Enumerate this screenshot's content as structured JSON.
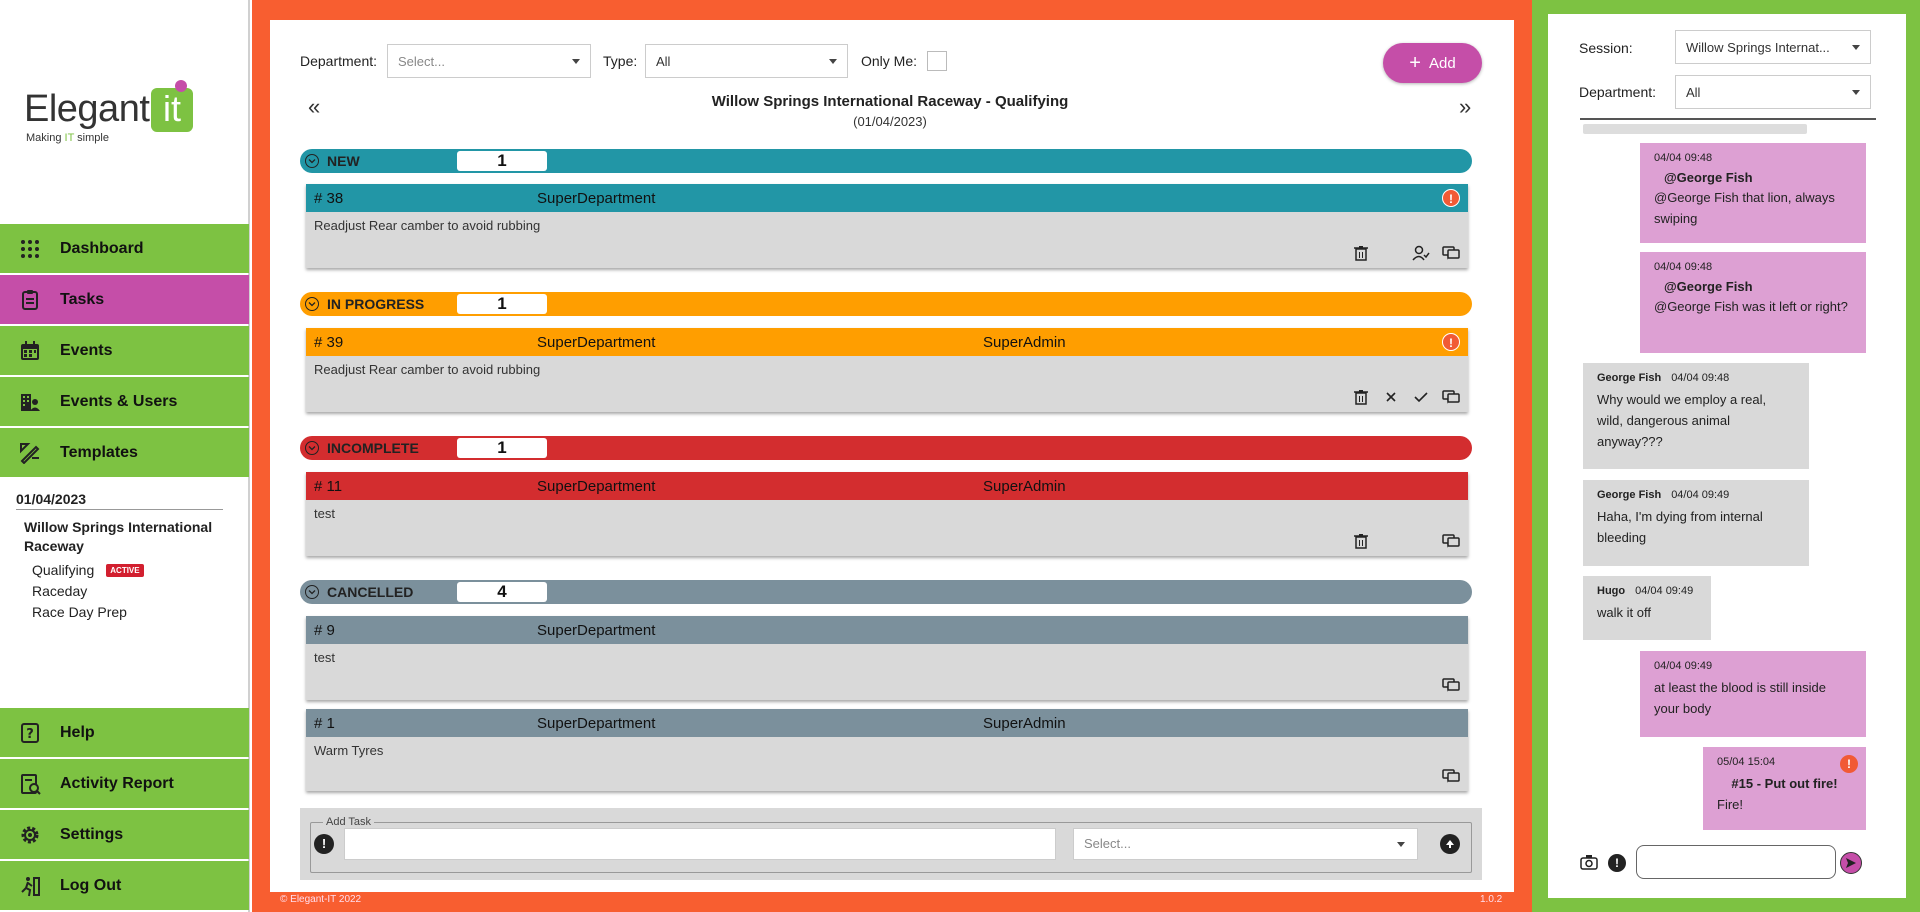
{
  "brand": {
    "name": "Elegant",
    "name_box": "it",
    "tagline_pre": "Making ",
    "tagline_it": "IT",
    "tagline_post": " simple"
  },
  "sidebar": {
    "nav": [
      {
        "label": "Dashboard",
        "icon": "grid-icon"
      },
      {
        "label": "Tasks",
        "icon": "clipboard-icon",
        "active": true
      },
      {
        "label": "Events",
        "icon": "calendar-icon"
      },
      {
        "label": "Events & Users",
        "icon": "building-users-icon"
      },
      {
        "label": "Templates",
        "icon": "ruler-pencil-icon"
      }
    ],
    "bottom_nav": [
      {
        "label": "Help",
        "icon": "question-icon"
      },
      {
        "label": "Activity Report",
        "icon": "report-icon"
      },
      {
        "label": "Settings",
        "icon": "gear-icon"
      },
      {
        "label": "Log Out",
        "icon": "logout-icon"
      }
    ],
    "date": "01/04/2023",
    "venue": "Willow Springs International Raceway",
    "sessions": [
      {
        "label": "Qualifying",
        "badge": "ACTIVE"
      },
      {
        "label": "Raceday"
      },
      {
        "label": "Race Day Prep"
      }
    ]
  },
  "filters": {
    "department_label": "Department:",
    "department_placeholder": "Select...",
    "type_label": "Type:",
    "type_value": "All",
    "only_me_label": "Only Me:",
    "add_label": "Add"
  },
  "session": {
    "title": "Willow Springs International Raceway - Qualifying",
    "date": "(01/04/2023)",
    "prev": "«",
    "next": "»"
  },
  "groups": [
    {
      "name": "NEW",
      "count": "1",
      "color": "#2296a6"
    },
    {
      "name": "IN PROGRESS",
      "count": "1",
      "color": "#ff9e00"
    },
    {
      "name": "INCOMPLETE",
      "count": "1",
      "color": "#d32d2f"
    },
    {
      "name": "CANCELLED",
      "count": "4",
      "color": "#7b909c"
    }
  ],
  "tasks": [
    {
      "num": "# 38",
      "dept": "SuperDepartment",
      "user": "",
      "desc": "Readjust Rear camber to avoid rubbing",
      "alert": "!",
      "color": "#2296a6"
    },
    {
      "num": "# 39",
      "dept": "SuperDepartment",
      "user": "SuperAdmin",
      "desc": "Readjust Rear camber to avoid rubbing",
      "alert": "!",
      "color": "#ff9e00"
    },
    {
      "num": "# 11",
      "dept": "SuperDepartment",
      "user": "SuperAdmin",
      "desc": "test",
      "color": "#d32d2f"
    },
    {
      "num": "# 9",
      "dept": "SuperDepartment",
      "user": "",
      "desc": "test",
      "color": "#7b909c"
    },
    {
      "num": "# 1",
      "dept": "SuperDepartment",
      "user": "SuperAdmin",
      "desc": "Warm Tyres",
      "color": "#7b909c"
    }
  ],
  "add_task": {
    "legend": "Add Task",
    "select_placeholder": "Select..."
  },
  "footer": {
    "copyright": "© Elegant-IT 2022",
    "version": "1.0.2"
  },
  "chat": {
    "session_label": "Session:",
    "session_value": "Willow Springs Internat...",
    "department_label": "Department:",
    "department_value": "All",
    "messages": [
      {
        "time": "04/04 09:48",
        "mention": "@George Fish",
        "text": "@George Fish that lion, always swiping"
      },
      {
        "time": "04/04 09:48",
        "mention": "@George Fish",
        "text": "@George Fish was it left or right?"
      },
      {
        "author": "George Fish",
        "time": "04/04 09:48",
        "text": "Why would we employ a real, wild, dangerous animal anyway???"
      },
      {
        "author": "George Fish",
        "time": "04/04 09:49",
        "text": "Haha, I'm dying from internal bleeding"
      },
      {
        "author": "Hugo",
        "time": "04/04 09:49",
        "text": "walk it off"
      },
      {
        "time": "04/04 09:49",
        "text": "at least the blood is still inside your body"
      },
      {
        "time": "05/04 15:04",
        "task": "#15 - Put out fire!",
        "text": "Fire!",
        "alert": "!"
      }
    ]
  },
  "colors": {
    "orange": "#f85e30",
    "green": "#7dc242",
    "purple": "#c54ea8"
  }
}
